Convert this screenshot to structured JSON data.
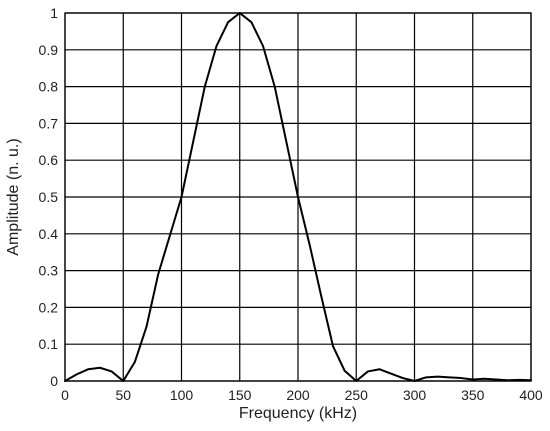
{
  "chart_data": {
    "type": "line",
    "title": "",
    "xlabel": "Frequency (kHz)",
    "ylabel": "Amplitude (n. u.)",
    "xlim": [
      0,
      400
    ],
    "ylim": [
      0,
      1
    ],
    "x_ticks": [
      0,
      50,
      100,
      150,
      200,
      250,
      300,
      350,
      400
    ],
    "y_ticks": [
      0,
      0.1,
      0.2,
      0.3,
      0.4,
      0.5,
      0.6,
      0.7,
      0.8,
      0.9,
      1
    ],
    "x_tick_labels": [
      "0",
      "50",
      "100",
      "150",
      "200",
      "250",
      "300",
      "350",
      "400"
    ],
    "y_tick_labels": [
      "0",
      "0.1",
      "0.2",
      "0.3",
      "0.4",
      "0.5",
      "0.6",
      "0.7",
      "0.8",
      "0.9",
      "1"
    ],
    "grid": true,
    "line_color": "#000000",
    "grid_color": "#000000",
    "series": [
      {
        "x": [
          0,
          10,
          20,
          30,
          40,
          50,
          60,
          70,
          80,
          90,
          100,
          110,
          120,
          130,
          140,
          150,
          160,
          170,
          180,
          190,
          200,
          210,
          220,
          230,
          240,
          250,
          260,
          270,
          280,
          290,
          300,
          310,
          320,
          330,
          340,
          350,
          360,
          370,
          380,
          390,
          400
        ],
        "y": [
          0.0,
          0.018,
          0.032,
          0.036,
          0.026,
          0.0,
          0.052,
          0.148,
          0.29,
          0.395,
          0.5,
          0.65,
          0.8,
          0.91,
          0.975,
          1.0,
          0.975,
          0.91,
          0.8,
          0.65,
          0.5,
          0.37,
          0.23,
          0.095,
          0.028,
          0.0,
          0.026,
          0.032,
          0.02,
          0.008,
          0.0,
          0.01,
          0.012,
          0.01,
          0.008,
          0.004,
          0.006,
          0.004,
          0.002,
          0.003,
          0.002
        ]
      }
    ]
  }
}
